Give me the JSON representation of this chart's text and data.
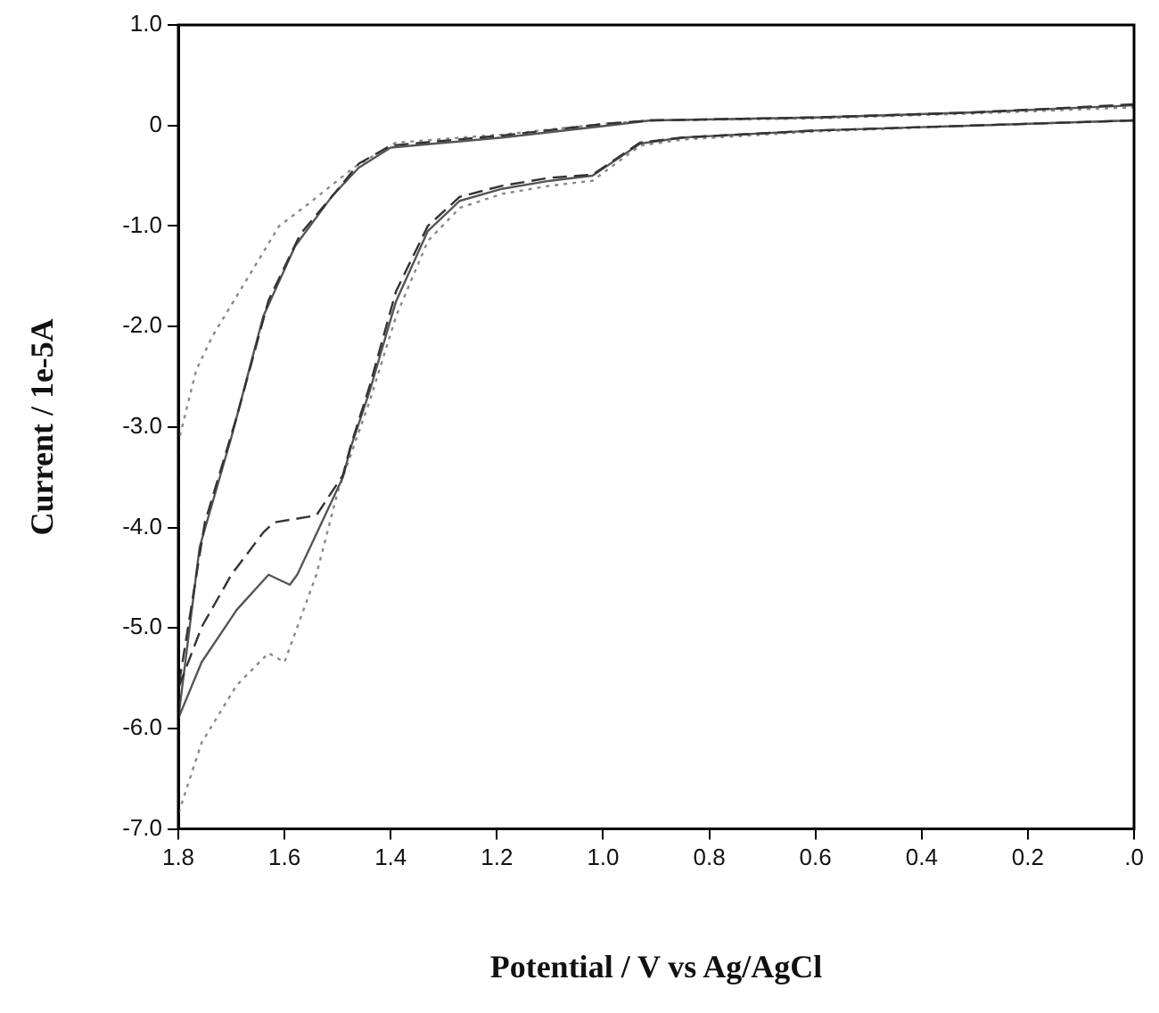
{
  "chart_data": {
    "type": "line",
    "xlabel": "Potential / V vs Ag/AgCl",
    "ylabel": "Current / 1e-5A",
    "xlim": [
      1.8,
      0
    ],
    "ylim": [
      -7,
      1
    ],
    "xticks": [
      {
        "value": 1.8,
        "label": "1.8"
      },
      {
        "value": 1.6,
        "label": "1.6"
      },
      {
        "value": 1.4,
        "label": "1.4"
      },
      {
        "value": 1.2,
        "label": "1.2"
      },
      {
        "value": 1,
        "label": "1.0"
      },
      {
        "value": 0.8,
        "label": "0.8"
      },
      {
        "value": 0.6,
        "label": "0.6"
      },
      {
        "value": 0.4,
        "label": "0.4"
      },
      {
        "value": 0.2,
        "label": "0.2"
      },
      {
        "value": 0,
        "label": ".0"
      }
    ],
    "yticks": [
      {
        "value": 1,
        "label": "1.0"
      },
      0,
      {
        "value": -1,
        "label": "-1.0"
      },
      {
        "value": -2,
        "label": "-2.0"
      },
      {
        "value": -3,
        "label": "-3.0"
      },
      {
        "value": -4,
        "label": "-4.0"
      },
      {
        "value": -5,
        "label": "-5.0"
      },
      {
        "value": -6,
        "label": "-6.0"
      },
      {
        "value": -7,
        "label": "-7.0"
      }
    ],
    "grid": false,
    "legend": false,
    "series": [
      {
        "type": "line",
        "color": "#333333",
        "line_style": "dashed",
        "x": [
          0,
          0.3,
          0.6,
          0.85,
          0.93,
          1.02,
          1.1,
          1.19,
          1.27,
          1.33,
          1.39,
          1.44,
          1.475,
          1.49,
          1.54,
          1.62,
          1.64,
          1.7,
          1.756,
          1.8,
          1.75,
          1.69,
          1.63,
          1.57,
          1.5,
          1.46,
          1.4,
          1.19,
          0.99,
          0.91,
          0.6,
          0.3,
          0
        ],
        "values": [
          0.05,
          0,
          -0.05,
          -0.12,
          -0.17,
          -0.49,
          -0.52,
          -0.6,
          -0.71,
          -1.0,
          -1.65,
          -2.6,
          -3.18,
          -3.48,
          -3.88,
          -3.95,
          -4.05,
          -4.47,
          -4.99,
          -5.6,
          -3.95,
          -2.9,
          -1.74,
          -1.08,
          -0.64,
          -0.38,
          -0.2,
          -0.1,
          0.02,
          0.05,
          0.08,
          0.13,
          0.21
        ]
      },
      {
        "type": "line",
        "color": "#555555",
        "line_style": "solid",
        "x": [
          0,
          0.3,
          0.6,
          0.85,
          0.93,
          1.02,
          1.1,
          1.19,
          1.27,
          1.33,
          1.39,
          1.44,
          1.475,
          1.49,
          1.576,
          1.59,
          1.63,
          1.69,
          1.756,
          1.8,
          1.76,
          1.7,
          1.64,
          1.58,
          1.51,
          1.46,
          1.4,
          1.19,
          0.99,
          0.91,
          0.6,
          0.3,
          0
        ],
        "values": [
          0.05,
          0,
          -0.05,
          -0.12,
          -0.18,
          -0.5,
          -0.55,
          -0.63,
          -0.75,
          -1.05,
          -1.75,
          -2.65,
          -3.2,
          -3.5,
          -4.47,
          -4.57,
          -4.47,
          -4.82,
          -5.34,
          -5.9,
          -4.2,
          -3.1,
          -1.9,
          -1.2,
          -0.7,
          -0.42,
          -0.22,
          -0.12,
          0,
          0.05,
          0.08,
          0.13,
          0.2
        ]
      },
      {
        "type": "line",
        "color": "#888888",
        "line_style": "dotted",
        "x": [
          0,
          0.3,
          0.6,
          0.85,
          0.93,
          1.02,
          1.1,
          1.19,
          1.27,
          1.33,
          1.39,
          1.44,
          1.5,
          1.54,
          1.6,
          1.63,
          1.69,
          1.756,
          1.8,
          1.8,
          1.766,
          1.735,
          1.61,
          1.555,
          1.47,
          1.39,
          1.19,
          0.99,
          0.91,
          0.6,
          0.3,
          0
        ],
        "values": [
          0.05,
          0,
          -0.06,
          -0.14,
          -0.2,
          -0.55,
          -0.6,
          -0.68,
          -0.82,
          -1.15,
          -1.9,
          -2.75,
          -3.65,
          -4.47,
          -5.34,
          -5.25,
          -5.57,
          -6.14,
          -6.85,
          -3.15,
          -2.43,
          -2.09,
          -1.0,
          -0.78,
          -0.42,
          -0.17,
          -0.09,
          0.02,
          0.05,
          0.07,
          0.12,
          0.18
        ]
      }
    ]
  }
}
